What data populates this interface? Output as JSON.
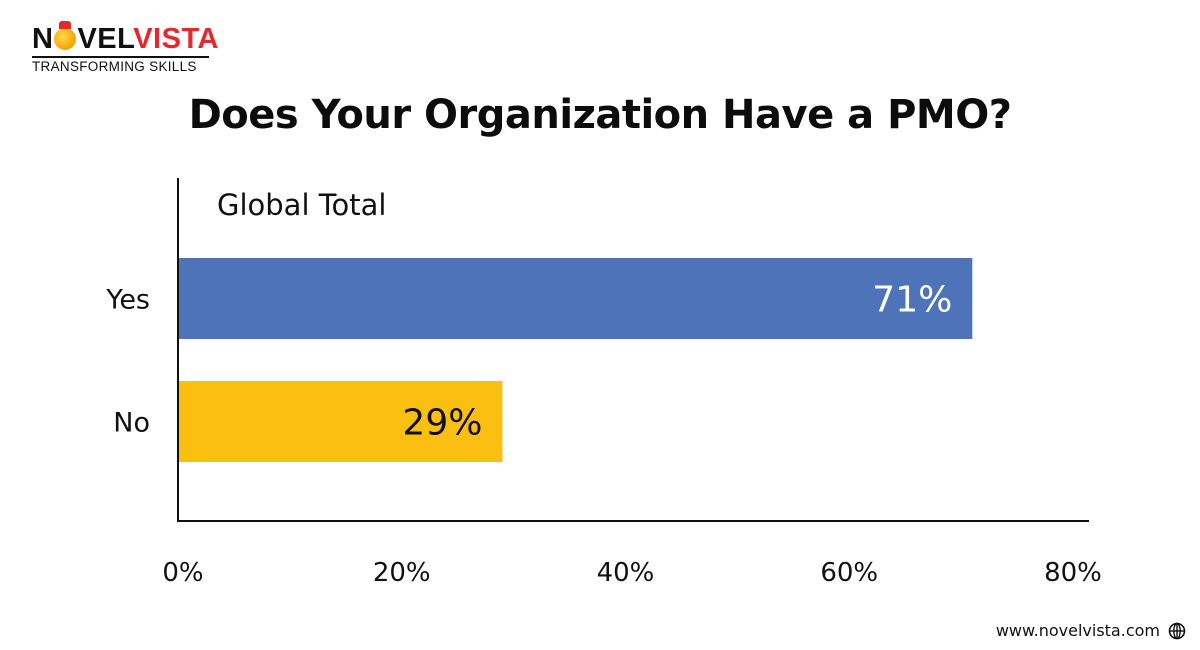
{
  "brand": {
    "name_part1": "N",
    "name_part2": "VEL",
    "name_part3": "VISTA",
    "tagline": "TRANSFORMING SKILLS"
  },
  "footer": {
    "website": "www.novelvista.com",
    "icon": "globe-icon"
  },
  "chart_data": {
    "type": "bar",
    "orientation": "horizontal",
    "title": "Does Your Organization Have a PMO?",
    "subtitle": "Global Total",
    "categories": [
      "Yes",
      "No"
    ],
    "values": [
      71,
      29
    ],
    "data_labels": [
      "71%",
      "29%"
    ],
    "colors": [
      "#4e73b9",
      "#fbbf12"
    ],
    "label_colors": [
      "#ffffff",
      "#111111"
    ],
    "xlim": [
      0,
      80
    ],
    "xticks": [
      0,
      20,
      40,
      60,
      80
    ],
    "xtick_labels": [
      "0%",
      "20%",
      "40%",
      "60%",
      "80%"
    ],
    "grid": false,
    "legend": "none"
  }
}
